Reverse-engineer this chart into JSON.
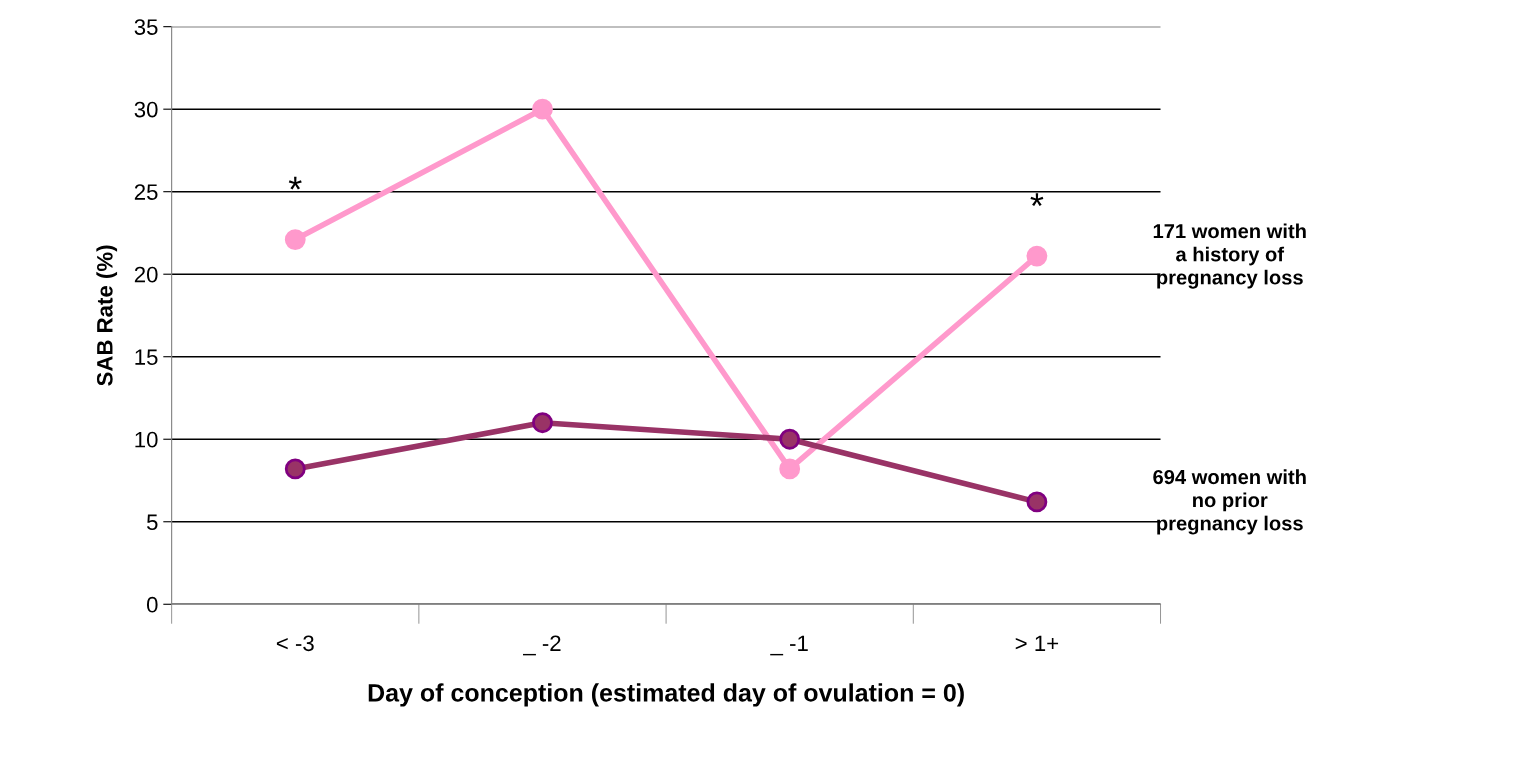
{
  "chart_data": {
    "type": "line",
    "xlabel": "Day of conception (estimated day of ovulation = 0)",
    "ylabel": "SAB Rate (%)",
    "categories": [
      "< -3",
      "_ -2",
      "_ -1",
      "> 1+"
    ],
    "series": [
      {
        "name": "171 women with\na history of\npregnancy loss",
        "color": "#ff99cc",
        "values": [
          22.1,
          30,
          8.2,
          21.1
        ]
      },
      {
        "name": "694 women with\nno prior\npregnancy loss",
        "color": "#993366",
        "values": [
          8.2,
          11,
          10,
          6.2
        ]
      }
    ],
    "annotations": [
      {
        "text": "*",
        "x": "< -3",
        "y": 22.1
      },
      {
        "text": "*",
        "x": "> 1+",
        "y": 21.1
      }
    ],
    "ylim": [
      0,
      35
    ],
    "yticks": [
      0,
      5,
      10,
      15,
      20,
      25,
      30,
      35
    ],
    "grid": "y",
    "marker": "circle",
    "line_style": "solid",
    "legend": false
  }
}
